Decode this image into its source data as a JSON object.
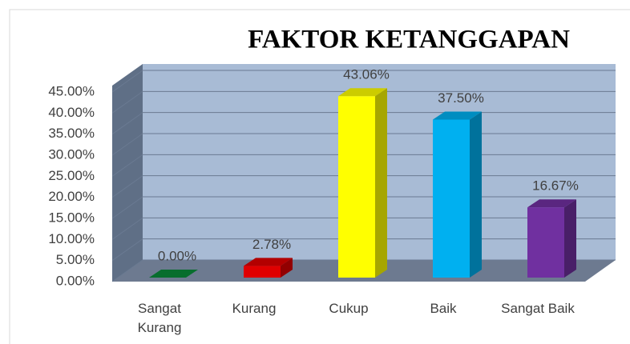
{
  "chart_data": {
    "type": "bar3d",
    "title": "FAKTOR KETANGGAPAN",
    "categories": [
      "Sangat Kurang",
      "Kurang",
      "Cukup",
      "Baik",
      "Sangat Baik"
    ],
    "values": [
      0,
      2.78,
      43.06,
      37.5,
      16.67
    ],
    "value_labels": [
      "0.00%",
      "2.78%",
      "43.06%",
      "37.50%",
      "16.67%"
    ],
    "colors": [
      "#0a8a3a",
      "#e00000",
      "#ffff00",
      "#00b0f0",
      "#7030a0"
    ],
    "ylim": [
      0,
      45
    ],
    "yticks": [
      {
        "value": 0,
        "label": "0.00%"
      },
      {
        "value": 5,
        "label": "5.00%"
      },
      {
        "value": 10,
        "label": "10.00%"
      },
      {
        "value": 15,
        "label": "15.00%"
      },
      {
        "value": 20,
        "label": "20.00%"
      },
      {
        "value": 25,
        "label": "25.00%"
      },
      {
        "value": 30,
        "label": "30.00%"
      },
      {
        "value": 35,
        "label": "35.00%"
      },
      {
        "value": 40,
        "label": "40.00%"
      },
      {
        "value": 45,
        "label": "45.00%"
      }
    ],
    "grid": true
  }
}
